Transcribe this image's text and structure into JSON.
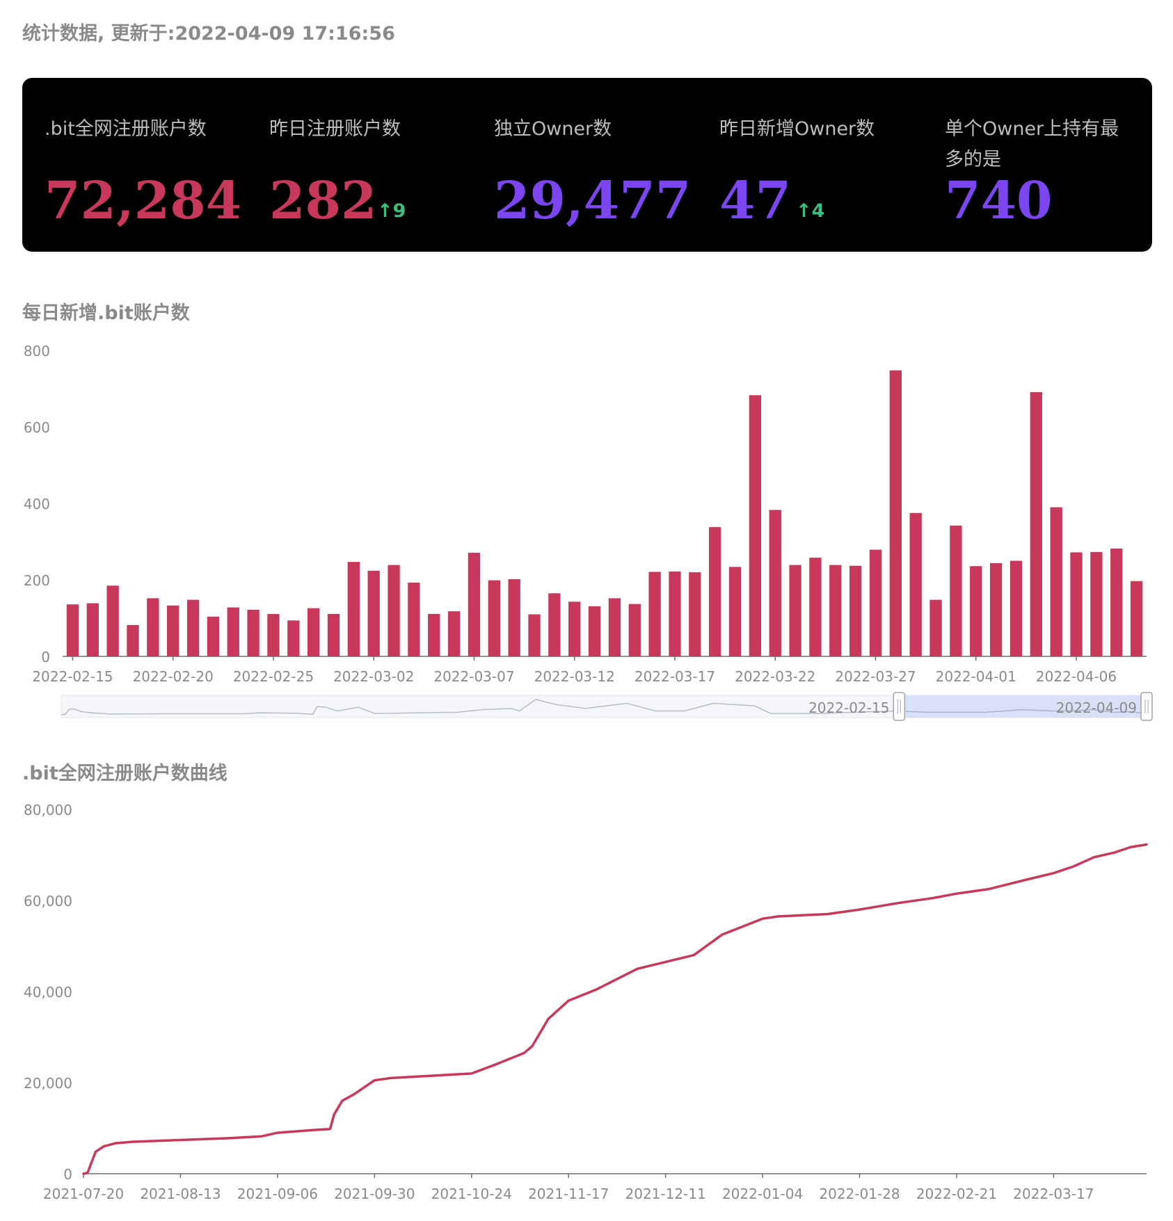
{
  "header": {
    "title": "统计数据, 更新于:2022-04-09 17:16:56"
  },
  "stats": [
    {
      "label": ".bit全网注册账户数",
      "value": "72,284",
      "delta": "",
      "color": "#c8385a"
    },
    {
      "label": "昨日注册账户数",
      "value": "282",
      "delta": "↑9",
      "color": "#c8385a"
    },
    {
      "label": "独立Owner数",
      "value": "29,477",
      "delta": "",
      "color": "#7b45f0"
    },
    {
      "label": "昨日新增Owner数",
      "value": "47",
      "delta": "↑4",
      "color": "#7b45f0"
    },
    {
      "label": "单个Owner上持有最多的是",
      "value": "740",
      "delta": "",
      "color": "#7b45f0"
    }
  ],
  "slider": {
    "start_label": "2022-02-15",
    "end_label": "2022-04-09",
    "start_fraction": 0.772,
    "end_fraction": 1.0
  },
  "chart_data": [
    {
      "type": "bar",
      "title": "每日新增.bit账户数",
      "color": "#c8385a",
      "ylim": [
        0,
        800
      ],
      "yticks": [
        0,
        200,
        400,
        600,
        800
      ],
      "xtick_labels": [
        "2022-02-15",
        "2022-02-20",
        "2022-02-25",
        "2022-03-02",
        "2022-03-07",
        "2022-03-12",
        "2022-03-17",
        "2022-03-22",
        "2022-03-27",
        "2022-04-01",
        "2022-04-06"
      ],
      "categories": [
        "2022-02-15",
        "2022-02-16",
        "2022-02-17",
        "2022-02-18",
        "2022-02-19",
        "2022-02-20",
        "2022-02-21",
        "2022-02-22",
        "2022-02-23",
        "2022-02-24",
        "2022-02-25",
        "2022-02-26",
        "2022-02-27",
        "2022-02-28",
        "2022-03-01",
        "2022-03-02",
        "2022-03-03",
        "2022-03-04",
        "2022-03-05",
        "2022-03-06",
        "2022-03-07",
        "2022-03-08",
        "2022-03-09",
        "2022-03-10",
        "2022-03-11",
        "2022-03-12",
        "2022-03-13",
        "2022-03-14",
        "2022-03-15",
        "2022-03-16",
        "2022-03-17",
        "2022-03-18",
        "2022-03-19",
        "2022-03-20",
        "2022-03-21",
        "2022-03-22",
        "2022-03-23",
        "2022-03-24",
        "2022-03-25",
        "2022-03-26",
        "2022-03-27",
        "2022-03-28",
        "2022-03-29",
        "2022-03-30",
        "2022-03-31",
        "2022-04-01",
        "2022-04-02",
        "2022-04-03",
        "2022-04-04",
        "2022-04-05",
        "2022-04-06",
        "2022-04-07",
        "2022-04-08",
        "2022-04-09"
      ],
      "values": [
        136,
        139,
        185,
        82,
        152,
        133,
        148,
        104,
        128,
        122,
        111,
        94,
        126,
        111,
        247,
        224,
        239,
        193,
        111,
        118,
        271,
        199,
        202,
        110,
        165,
        143,
        131,
        152,
        137,
        221,
        222,
        220,
        338,
        234,
        683,
        383,
        239,
        258,
        239,
        237,
        279,
        748,
        375,
        148,
        342,
        236,
        244,
        250,
        691,
        390,
        272,
        273,
        282,
        197
      ]
    },
    {
      "type": "line",
      "title": ".bit全网注册账户数曲线",
      "color": "#c8385a",
      "ylim": [
        0,
        80000
      ],
      "yticks": [
        0,
        20000,
        40000,
        60000,
        80000
      ],
      "xtick_labels": [
        "2021-07-20",
        "2021-08-13",
        "2021-09-06",
        "2021-09-30",
        "2021-10-24",
        "2021-11-17",
        "2021-12-11",
        "2022-01-04",
        "2022-01-28",
        "2022-02-21",
        "2022-03-17"
      ],
      "x": [
        "2021-07-20",
        "2021-07-21",
        "2021-07-22",
        "2021-07-23",
        "2021-07-25",
        "2021-07-28",
        "2021-08-01",
        "2021-08-13",
        "2021-08-25",
        "2021-09-02",
        "2021-09-06",
        "2021-09-15",
        "2021-09-19",
        "2021-09-20",
        "2021-09-22",
        "2021-09-25",
        "2021-09-30",
        "2021-10-04",
        "2021-10-24",
        "2021-10-30",
        "2021-11-06",
        "2021-11-08",
        "2021-11-12",
        "2021-11-17",
        "2021-11-24",
        "2021-12-04",
        "2021-12-11",
        "2021-12-18",
        "2021-12-25",
        "2022-01-04",
        "2022-01-08",
        "2022-01-20",
        "2022-01-28",
        "2022-02-07",
        "2022-02-15",
        "2022-02-21",
        "2022-03-01",
        "2022-03-10",
        "2022-03-17",
        "2022-03-22",
        "2022-03-27",
        "2022-04-01",
        "2022-04-05",
        "2022-04-09"
      ],
      "y": [
        0,
        200,
        2500,
        4800,
        6000,
        6700,
        7000,
        7400,
        7800,
        8200,
        9000,
        9600,
        9800,
        13000,
        16000,
        17500,
        20500,
        21000,
        22000,
        24000,
        26500,
        28000,
        34000,
        38000,
        40500,
        45000,
        46500,
        48000,
        52500,
        56000,
        56500,
        57000,
        58000,
        59500,
        60500,
        61500,
        62500,
        64500,
        66000,
        67500,
        69500,
        70500,
        71700,
        72284
      ]
    }
  ],
  "colors": {
    "accent": "#c8385a",
    "owner": "#7b45f0",
    "increase": "#3dbd7d",
    "panel": "#000000"
  }
}
